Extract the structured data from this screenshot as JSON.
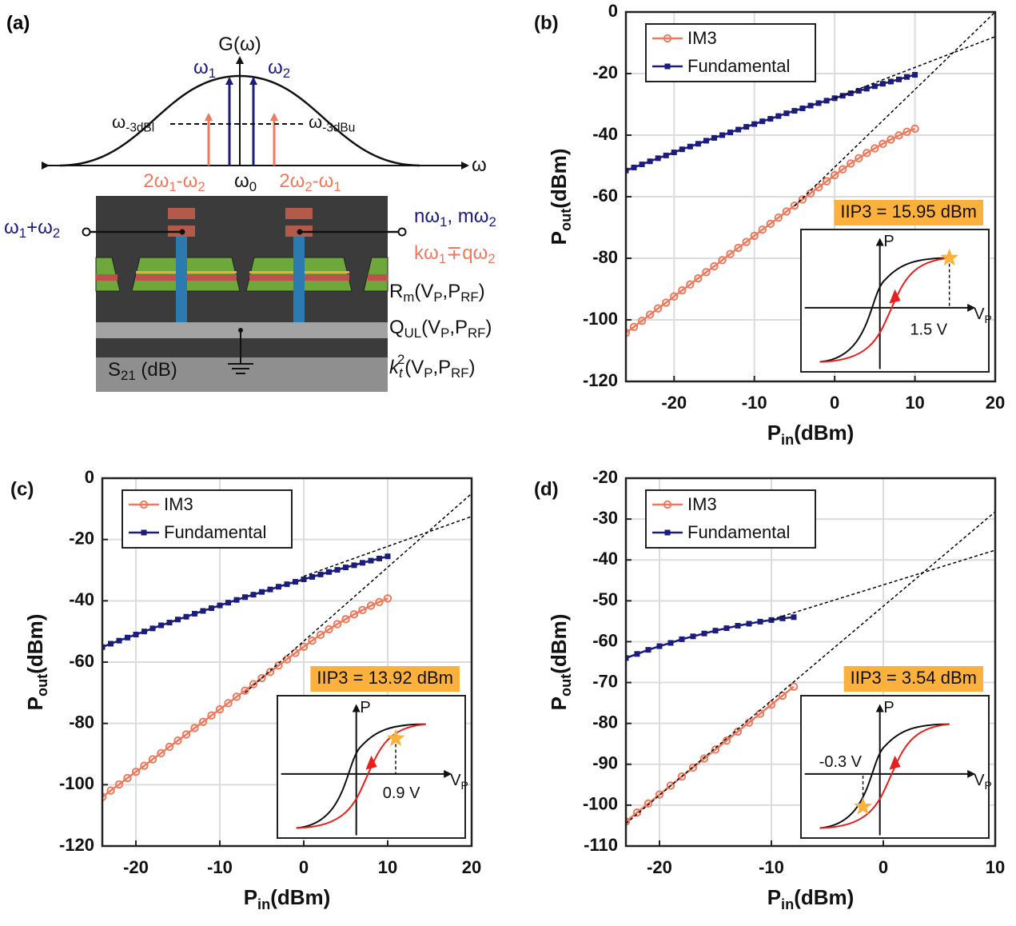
{
  "diagram": {
    "panel_label": "(a)",
    "gain": [
      {
        "text": "G(ω)"
      }
    ],
    "omega_1": [
      {
        "text": "ω"
      },
      {
        "text": "1",
        "style": "sub"
      }
    ],
    "omega_2": [
      {
        "text": "ω"
      },
      {
        "text": "2",
        "style": "sub"
      }
    ],
    "lower_3db": [
      {
        "text": "ω"
      },
      {
        "text": "-3dBl",
        "style": "sub"
      }
    ],
    "upper_3db": [
      {
        "text": "ω"
      },
      {
        "text": "-3dBu",
        "style": "sub"
      }
    ],
    "im3_lower": [
      {
        "text": "2ω"
      },
      {
        "text": "1",
        "style": "sub"
      },
      {
        "text": "-ω"
      },
      {
        "text": "2",
        "style": "sub"
      }
    ],
    "center": [
      {
        "text": "ω"
      },
      {
        "text": "0",
        "style": "sub"
      }
    ],
    "im3_upper": [
      {
        "text": "2ω"
      },
      {
        "text": "2",
        "style": "sub"
      },
      {
        "text": "-ω"
      },
      {
        "text": "1",
        "style": "sub"
      }
    ],
    "axis": [
      {
        "text": "ω"
      }
    ],
    "input": [
      {
        "text": "ω"
      },
      {
        "text": "1",
        "style": "sub"
      },
      {
        "text": "+ω"
      },
      {
        "text": "2",
        "style": "sub"
      }
    ],
    "harmonics": [
      {
        "text": "nω"
      },
      {
        "text": "1",
        "style": "sub"
      },
      {
        "text": ", mω"
      },
      {
        "text": "2",
        "style": "sub"
      }
    ],
    "mixing": [
      {
        "text": "kω"
      },
      {
        "text": "1",
        "style": "sub"
      },
      {
        "text": "∓qω"
      },
      {
        "text": "2",
        "style": "sub"
      }
    ],
    "resistance": [
      {
        "text": "R"
      },
      {
        "text": "m",
        "style": "sub"
      },
      {
        "text": "(V"
      },
      {
        "text": "P",
        "style": "sub"
      },
      {
        "text": ",P"
      },
      {
        "text": "RF",
        "style": "sub"
      },
      {
        "text": ")"
      }
    ],
    "quality": [
      {
        "text": "Q"
      },
      {
        "text": "UL",
        "style": "sub"
      },
      {
        "text": "(V"
      },
      {
        "text": "P",
        "style": "sub"
      },
      {
        "text": ",P"
      },
      {
        "text": "RF",
        "style": "sub"
      },
      {
        "text": ")"
      }
    ],
    "transmission": [
      {
        "text": "S"
      },
      {
        "text": "21",
        "style": "sub"
      },
      {
        "text": " (dB)"
      }
    ],
    "coupling": [
      {
        "text": "k",
        "style": "italic"
      },
      {
        "text": "t",
        "style": "sub italic"
      },
      {
        "text": "2",
        "style": "sup"
      },
      {
        "text": "(V"
      },
      {
        "text": "P",
        "style": "sub"
      },
      {
        "text": ",P"
      },
      {
        "text": "RF",
        "style": "sub"
      },
      {
        "text": ")"
      }
    ]
  },
  "chart_data": [
    {
      "type": "line",
      "panel_label": "(b)",
      "x_label": [
        {
          "text": "P"
        },
        {
          "text": "in",
          "style": "sub"
        },
        {
          "text": "(dBm)"
        }
      ],
      "y_label": [
        {
          "text": "P"
        },
        {
          "text": "out",
          "style": "sub"
        },
        {
          "text": "(dBm)"
        }
      ],
      "xlim": [
        -26,
        20
      ],
      "xticks": [
        -20,
        -10,
        0,
        10,
        20
      ],
      "ylim": [
        -120,
        0
      ],
      "yticks": [
        -120,
        -100,
        -80,
        -60,
        -40,
        -20,
        0
      ],
      "grid": true,
      "legend": "upper left",
      "series": [
        {
          "name": "IM3",
          "color": "#ee7a5e",
          "marker": "circle",
          "x": [
            -26,
            -25,
            -24,
            -23,
            -22,
            -21,
            -20,
            -19,
            -18,
            -17,
            -16,
            -15,
            -14,
            -13,
            -12,
            -11,
            -10,
            -9,
            -8,
            -7,
            -6,
            -5,
            -4,
            -3,
            -2,
            -1,
            0,
            1,
            2,
            3,
            4,
            5,
            6,
            7,
            8,
            9,
            10
          ],
          "values": [
            -104.2,
            -102.3,
            -100.3,
            -98.3,
            -96.3,
            -94.4,
            -92.4,
            -90.4,
            -88.5,
            -86.5,
            -84.5,
            -82.6,
            -80.6,
            -78.6,
            -76.6,
            -74.7,
            -72.7,
            -70.7,
            -68.8,
            -66.8,
            -64.8,
            -62.9,
            -60.9,
            -58.9,
            -56.9,
            -55,
            -53,
            -51.1,
            -49.2,
            -47.5,
            -45.8,
            -44.3,
            -42.8,
            -41.4,
            -40.1,
            -38.9,
            -37.9
          ]
        },
        {
          "name": "Fundamental",
          "color": "#1c1c7c",
          "marker": "square",
          "x": [
            -26,
            -25,
            -24,
            -23,
            -22,
            -21,
            -20,
            -19,
            -18,
            -17,
            -16,
            -15,
            -14,
            -13,
            -12,
            -11,
            -10,
            -9,
            -8,
            -7,
            -6,
            -5,
            -4,
            -3,
            -2,
            -1,
            0,
            1,
            2,
            3,
            4,
            5,
            6,
            7,
            8,
            9,
            10
          ],
          "values": [
            -51.5,
            -50.5,
            -49.5,
            -48.5,
            -47.5,
            -46.6,
            -45.6,
            -44.6,
            -43.7,
            -42.8,
            -41.8,
            -40.9,
            -40,
            -39.1,
            -38.2,
            -37.3,
            -36.4,
            -35.5,
            -34.7,
            -33.8,
            -32.9,
            -32.1,
            -31.3,
            -30.4,
            -29.6,
            -28.8,
            -28,
            -27.2,
            -26.4,
            -25.6,
            -24.9,
            -24.1,
            -23.3,
            -22.6,
            -21.9,
            -21.1,
            -20.4
          ]
        },
        {
          "color": "#000000",
          "line_style": "dashed",
          "x": [
            -5,
            20
          ],
          "values": [
            -63,
            0
          ]
        },
        {
          "color": "#000000",
          "line_style": "dashed",
          "x": [
            0,
            20
          ],
          "values": [
            -28,
            -8
          ]
        }
      ],
      "annotation": "IIP3 = 15.95 dBm",
      "inset": {
        "y_label": [
          {
            "text": "P"
          }
        ],
        "x_label": [
          {
            "text": "V"
          },
          {
            "text": "P",
            "style": "sub"
          }
        ],
        "marker_label": "1.5 V"
      }
    },
    {
      "type": "line",
      "panel_label": "(c)",
      "x_label": [
        {
          "text": "P"
        },
        {
          "text": "in",
          "style": "sub"
        },
        {
          "text": "(dBm)"
        }
      ],
      "y_label": [
        {
          "text": "P"
        },
        {
          "text": "out",
          "style": "sub"
        },
        {
          "text": "(dBm)"
        }
      ],
      "xlim": [
        -24,
        20
      ],
      "xticks": [
        -20,
        -10,
        0,
        10,
        20
      ],
      "ylim": [
        -120,
        0
      ],
      "yticks": [
        -120,
        -100,
        -80,
        -60,
        -40,
        -20,
        0
      ],
      "grid": true,
      "legend": "upper left",
      "series": [
        {
          "name": "IM3",
          "color": "#ee7a5e",
          "marker": "circle",
          "x": [
            -24,
            -23,
            -22,
            -21,
            -20,
            -19,
            -18,
            -17,
            -16,
            -15,
            -14,
            -13,
            -12,
            -11,
            -10,
            -9,
            -8,
            -7,
            -6,
            -5,
            -4,
            -3,
            -2,
            -1,
            0,
            1,
            2,
            3,
            4,
            5,
            6,
            7,
            8,
            9,
            10
          ],
          "values": [
            -104,
            -101.9,
            -99.9,
            -97.8,
            -95.8,
            -93.8,
            -91.7,
            -89.7,
            -87.6,
            -85.6,
            -83.6,
            -81.5,
            -79.5,
            -77.4,
            -75.4,
            -73.4,
            -71.3,
            -69.3,
            -67.2,
            -65.2,
            -63.2,
            -61.1,
            -59.1,
            -57,
            -55,
            -53,
            -51.1,
            -49.3,
            -47.6,
            -46,
            -44.4,
            -43,
            -41.6,
            -40.4,
            -39.2
          ]
        },
        {
          "name": "Fundamental",
          "color": "#1c1c7c",
          "marker": "square",
          "x": [
            -24,
            -23,
            -22,
            -21,
            -20,
            -19,
            -18,
            -17,
            -16,
            -15,
            -14,
            -13,
            -12,
            -11,
            -10,
            -9,
            -8,
            -7,
            -6,
            -5,
            -4,
            -3,
            -2,
            -1,
            0,
            1,
            2,
            3,
            4,
            5,
            6,
            7,
            8,
            9,
            10
          ],
          "values": [
            -55.1,
            -54,
            -53,
            -52,
            -51,
            -50,
            -49,
            -48,
            -47.1,
            -46.1,
            -45.2,
            -44.2,
            -43.3,
            -42.4,
            -41.5,
            -40.6,
            -39.7,
            -38.8,
            -38,
            -37.1,
            -36.3,
            -35.4,
            -34.6,
            -33.8,
            -33,
            -32.2,
            -31.4,
            -30.6,
            -29.9,
            -29.1,
            -28.4,
            -27.6,
            -26.9,
            -26.2,
            -25.5
          ]
        },
        {
          "color": "#000000",
          "line_style": "dashed",
          "x": [
            -7,
            20
          ],
          "values": [
            -70,
            -5
          ]
        },
        {
          "color": "#000000",
          "line_style": "dashed",
          "x": [
            0,
            20
          ],
          "values": [
            -32,
            -12.5
          ]
        }
      ],
      "annotation": "IIP3 = 13.92 dBm",
      "inset": {
        "y_label": [
          {
            "text": "P"
          }
        ],
        "x_label": [
          {
            "text": "V"
          },
          {
            "text": "P",
            "style": "sub"
          }
        ],
        "marker_label": "0.9 V"
      }
    },
    {
      "type": "line",
      "panel_label": "(d)",
      "x_label": [
        {
          "text": "P"
        },
        {
          "text": "in",
          "style": "sub"
        },
        {
          "text": "(dBm)"
        }
      ],
      "y_label": [
        {
          "text": "P"
        },
        {
          "text": "out",
          "style": "sub"
        },
        {
          "text": "(dBm)"
        }
      ],
      "xlim": [
        -23,
        10
      ],
      "xticks": [
        -20,
        -10,
        0,
        10
      ],
      "ylim": [
        -110,
        -20
      ],
      "yticks": [
        -110,
        -100,
        -90,
        -80,
        -70,
        -60,
        -50,
        -40,
        -30,
        -20
      ],
      "grid": true,
      "legend": "upper left",
      "series": [
        {
          "name": "IM3",
          "color": "#ee7a5e",
          "marker": "circle",
          "x": [
            -23,
            -22,
            -21,
            -20,
            -19,
            -18,
            -17,
            -16,
            -15,
            -14,
            -13,
            -12,
            -11,
            -10,
            -9,
            -8
          ],
          "values": [
            -104,
            -101.8,
            -99.6,
            -97.4,
            -95.2,
            -93,
            -90.8,
            -88.6,
            -86.4,
            -84.2,
            -82,
            -79.8,
            -77.6,
            -75.4,
            -73.2,
            -71
          ]
        },
        {
          "name": "Fundamental",
          "color": "#1c1c7c",
          "marker": "square",
          "x": [
            -23,
            -22,
            -21,
            -20,
            -19,
            -18,
            -17,
            -16,
            -15,
            -14,
            -13,
            -12,
            -11,
            -10,
            -9,
            -8
          ],
          "values": [
            -64,
            -63,
            -62,
            -61.1,
            -60.3,
            -59.4,
            -58.7,
            -58,
            -57.3,
            -56.7,
            -56.1,
            -55.6,
            -55.1,
            -54.7,
            -54.3,
            -54
          ]
        },
        {
          "color": "#000000",
          "line_style": "dashed",
          "x": [
            -23,
            10
          ],
          "values": [
            -104.5,
            -28.2
          ]
        },
        {
          "color": "#000000",
          "line_style": "dashed",
          "x": [
            -10,
            10
          ],
          "values": [
            -54.6,
            -37.6
          ]
        }
      ],
      "annotation": "IIP3 = 3.54 dBm",
      "inset": {
        "y_label": [
          {
            "text": "P"
          }
        ],
        "x_label": [
          {
            "text": "V"
          },
          {
            "text": "P",
            "style": "sub"
          }
        ],
        "marker_label": "-0.3 V"
      }
    }
  ]
}
